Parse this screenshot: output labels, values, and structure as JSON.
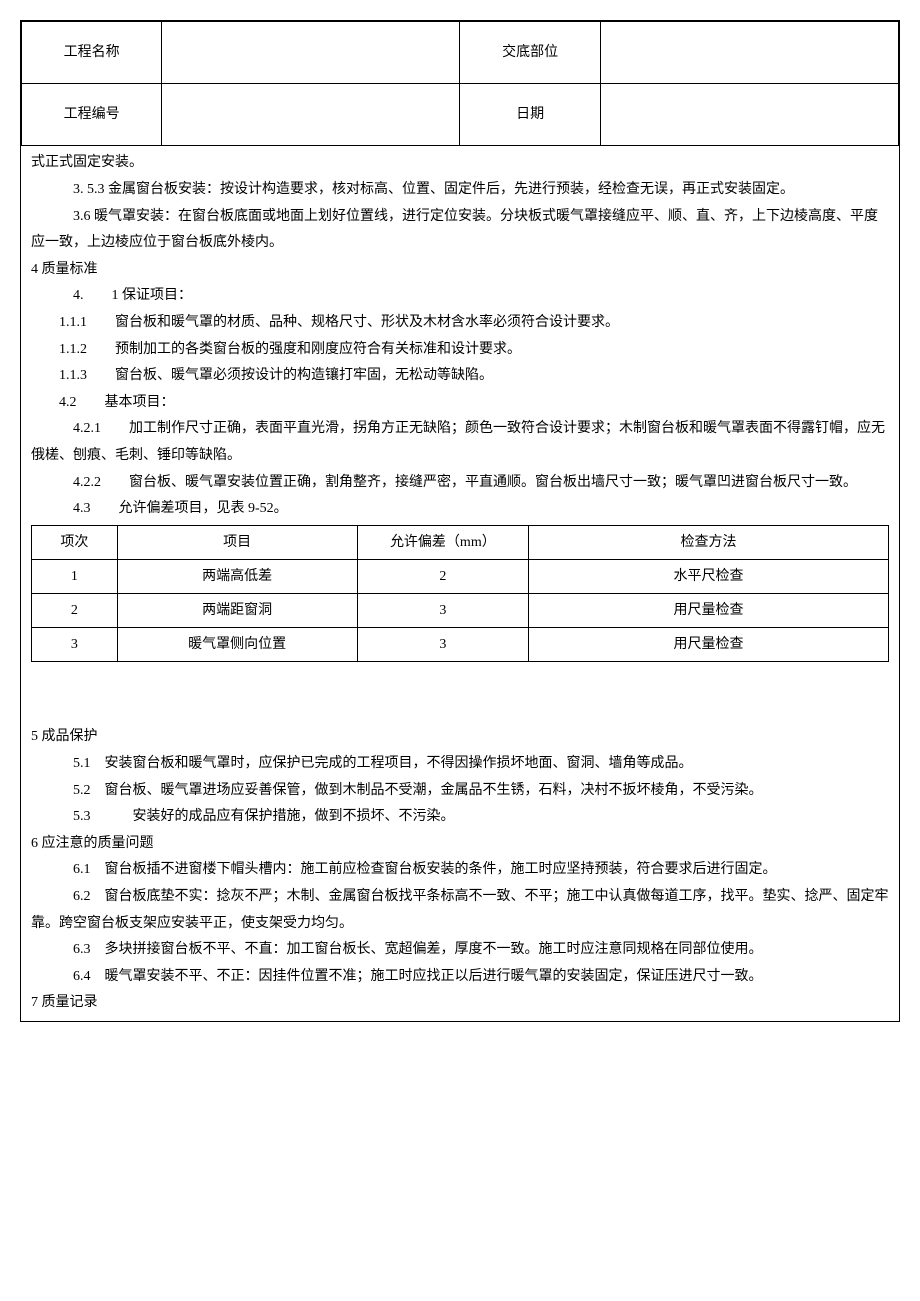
{
  "header": {
    "project_name_label": "工程名称",
    "project_name_value": "",
    "disclosure_part_label": "交底部位",
    "disclosure_part_value": "",
    "project_number_label": "工程编号",
    "project_number_value": "",
    "date_label": "日期",
    "date_value": ""
  },
  "body": {
    "p01": "式正式固定安装。",
    "p02": "3. 5.3 金属窗台板安装：按设计构造要求，核对标高、位置、固定件后，先进行预装，经检查无误，再正式安装固定。",
    "p03": "3.6 暖气罩安装：在窗台板底面或地面上划好位置线，进行定位安装。分块板式暖气罩接缝应平、顺、直、齐，上下边棱高度、平度应一致，上边棱应位于窗台板底外棱内。",
    "p04": "4 质量标准",
    "p05": "4.　　1 保证项目：",
    "p06": "1.1.1　　窗台板和暖气罩的材质、品种、规格尺寸、形状及木材含水率必须符合设计要求。",
    "p07": "1.1.2　　预制加工的各类窗台板的强度和刚度应符合有关标准和设计要求。",
    "p08": "1.1.3　　窗台板、暖气罩必须按设计的构造镶打牢固，无松动等缺陷。",
    "p09": "4.2　　基本项目：",
    "p10": "4.2.1　　加工制作尺寸正确，表面平直光滑，拐角方正无缺陷；颜色一致符合设计要求；木制窗台板和暖气罩表面不得露钉帽，应无俄槎、刨痕、毛刺、锤印等缺陷。",
    "p11": "4.2.2　　窗台板、暖气罩安装位置正确，割角整齐，接缝严密，平直通顺。窗台板出墙尺寸一致；暖气罩凹进窗台板尺寸一致。",
    "p12": "4.3　　允许偏差项目，见表 9-52。",
    "p13": "5 成品保护",
    "p14": "5.1　安装窗台板和暖气罩时，应保护已完成的工程项目，不得因操作损坏地面、窗洞、墙角等成品。",
    "p15": "5.2　窗台板、暖气罩进场应妥善保管，做到木制品不受潮，金属品不生锈，石料，决村不扳坏棱角，不受污染。",
    "p16": "5.3　　　安装好的成品应有保护措施，做到不损坏、不污染。",
    "p17": "6 应注意的质量问题",
    "p18": "6.1　窗台板插不进窗楼下帽头槽内：施工前应检查窗台板安装的条件，施工时应坚持预装，符合要求后进行固定。",
    "p19": "6.2　窗台板底垫不实：捻灰不严；木制、金属窗台板找平条标高不一致、不平；施工中认真做每道工序，找平。垫实、捻严、固定牢靠。跨空窗台板支架应安装平正，使支架受力均匀。",
    "p20": "6.3　多块拼接窗台板不平、不直：加工窗台板长、宽超偏差，厚度不一致。施工时应注意同规格在同部位使用。",
    "p21": "6.4　暖气罩安装不平、不正：因挂件位置不准；施工时应找正以后进行暖气罩的安装固定，保证压进尺寸一致。",
    "p22": "7 质量记录"
  },
  "spec_table": {
    "headers": {
      "col1": "项次",
      "col2": "项目",
      "col3": "允许偏差（mm）",
      "col4": "检查方法"
    },
    "rows": [
      {
        "no": "1",
        "item": "两端高低差",
        "tol": "2",
        "method": "水平尺检查"
      },
      {
        "no": "2",
        "item": "两端距窗洞",
        "tol": "3",
        "method": "用尺量检查"
      },
      {
        "no": "3",
        "item": "暖气罩侧向位置",
        "tol": "3",
        "method": "用尺量检查"
      }
    ]
  }
}
